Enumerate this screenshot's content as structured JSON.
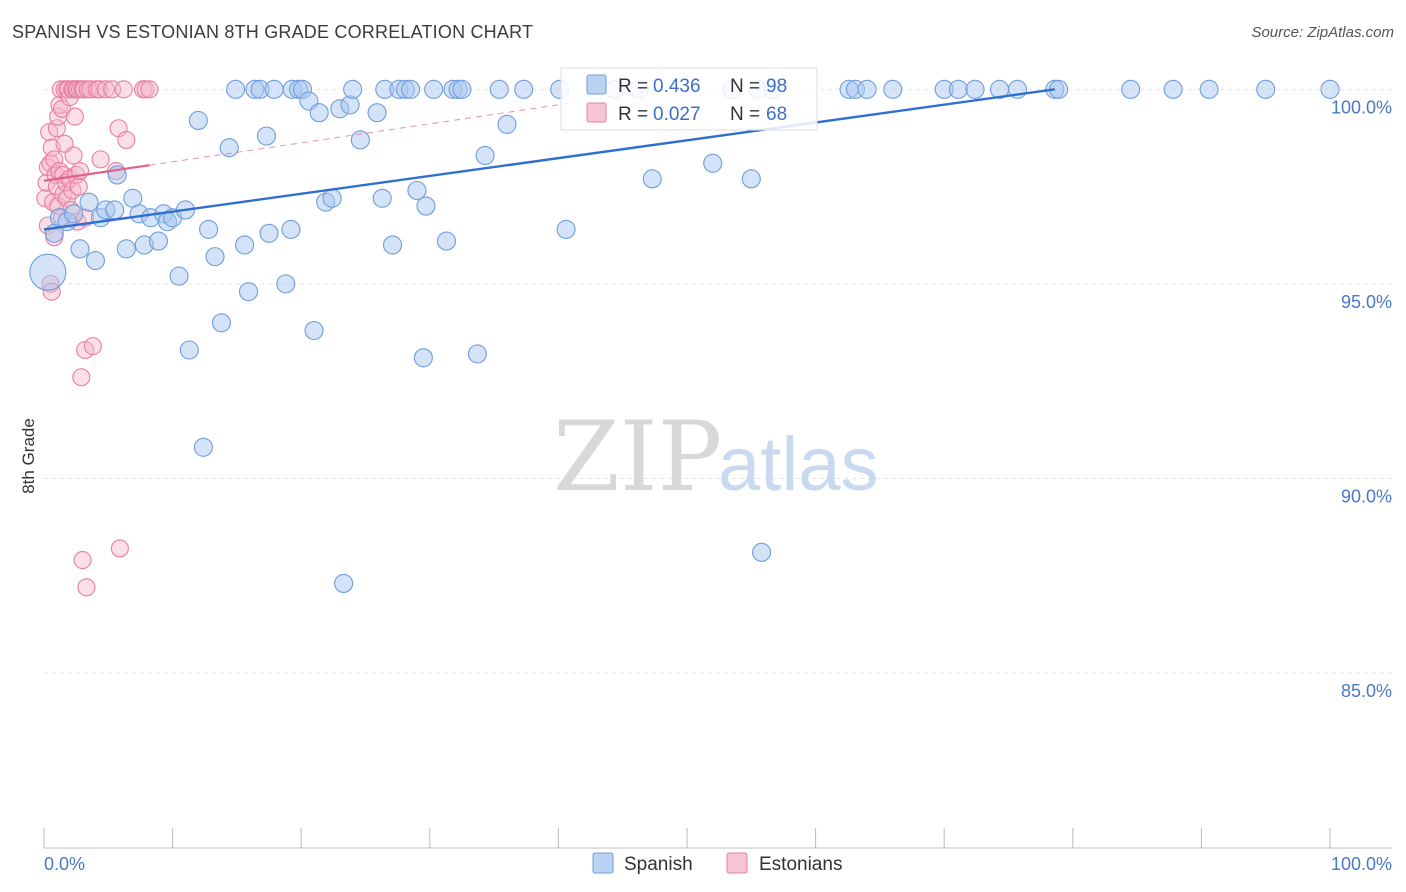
{
  "header": {
    "title": "SPANISH VS ESTONIAN 8TH GRADE CORRELATION CHART",
    "source": "Source: ZipAtlas.com"
  },
  "watermark": {
    "zip": "ZIP",
    "atlas": "atlas"
  },
  "legend": {
    "spanish": {
      "r_label": "R =",
      "r_value": "0.436",
      "n_label": "N =",
      "n_value": "98"
    },
    "estonians": {
      "r_label": "R =",
      "r_value": "0.027",
      "n_label": "N =",
      "n_value": "68"
    }
  },
  "colors": {
    "spanish_fill": "#aac8f0",
    "spanish_stroke": "#6f9ddb",
    "spanish_line": "#2f6fd0",
    "estonian_fill": "#f5b8ca",
    "estonian_stroke": "#e87fa0",
    "estonian_line": "#e0628c",
    "grid": "#e3e3e3",
    "tick_label": "#4a78c8"
  },
  "chart_data": {
    "type": "scatter",
    "title": "SPANISH VS ESTONIAN 8TH GRADE CORRELATION CHART",
    "xlabel": "",
    "ylabel": "8th Grade",
    "xlim": [
      0,
      100
    ],
    "ylim": [
      80.5,
      100.6
    ],
    "x_tick_labels": [
      "0.0%",
      "100.0%"
    ],
    "y_ticks": [
      85,
      90,
      95,
      100
    ],
    "y_tick_labels": [
      "85.0%",
      "90.0%",
      "95.0%",
      "100.0%"
    ],
    "legend_position": "top-center",
    "series": [
      {
        "name": "Spanish",
        "R": 0.436,
        "N": 98,
        "trend": {
          "x": [
            0,
            78.6
          ],
          "y": [
            96.4,
            100.0
          ]
        },
        "points": [
          [
            0.3,
            95.3
          ],
          [
            0.8,
            96.3
          ],
          [
            1.2,
            96.7
          ],
          [
            1.8,
            96.6
          ],
          [
            2.3,
            96.8
          ],
          [
            2.8,
            95.9
          ],
          [
            3.5,
            97.1
          ],
          [
            4.0,
            95.6
          ],
          [
            4.4,
            96.7
          ],
          [
            4.8,
            96.9
          ],
          [
            5.5,
            96.9
          ],
          [
            5.7,
            97.8
          ],
          [
            6.4,
            95.9
          ],
          [
            6.9,
            97.2
          ],
          [
            7.4,
            96.8
          ],
          [
            7.8,
            96.0
          ],
          [
            8.3,
            96.7
          ],
          [
            8.9,
            96.1
          ],
          [
            9.3,
            96.8
          ],
          [
            9.6,
            96.6
          ],
          [
            10.0,
            96.7
          ],
          [
            10.5,
            95.2
          ],
          [
            11.0,
            96.9
          ],
          [
            11.3,
            93.3
          ],
          [
            12.0,
            99.2
          ],
          [
            12.4,
            90.8
          ],
          [
            12.8,
            96.4
          ],
          [
            13.3,
            95.7
          ],
          [
            13.8,
            94.0
          ],
          [
            14.4,
            98.5
          ],
          [
            14.9,
            100.0
          ],
          [
            15.6,
            96.0
          ],
          [
            15.9,
            94.8
          ],
          [
            16.4,
            100.0
          ],
          [
            16.8,
            100.0
          ],
          [
            17.3,
            98.8
          ],
          [
            17.5,
            96.3
          ],
          [
            17.9,
            100.0
          ],
          [
            18.8,
            95.0
          ],
          [
            19.2,
            96.4
          ],
          [
            19.3,
            100.0
          ],
          [
            19.8,
            100.0
          ],
          [
            20.1,
            100.0
          ],
          [
            20.6,
            99.7
          ],
          [
            21.0,
            93.8
          ],
          [
            21.4,
            99.4
          ],
          [
            21.9,
            97.1
          ],
          [
            22.4,
            97.2
          ],
          [
            23.0,
            99.5
          ],
          [
            23.3,
            87.3
          ],
          [
            23.8,
            99.6
          ],
          [
            24.0,
            100.0
          ],
          [
            24.6,
            98.7
          ],
          [
            25.9,
            99.4
          ],
          [
            26.3,
            97.2
          ],
          [
            26.5,
            100.0
          ],
          [
            27.1,
            96.0
          ],
          [
            27.6,
            100.0
          ],
          [
            28.1,
            100.0
          ],
          [
            28.5,
            100.0
          ],
          [
            29.0,
            97.4
          ],
          [
            29.5,
            93.1
          ],
          [
            29.7,
            97.0
          ],
          [
            30.3,
            100.0
          ],
          [
            31.3,
            96.1
          ],
          [
            31.8,
            100.0
          ],
          [
            32.2,
            100.0
          ],
          [
            32.5,
            100.0
          ],
          [
            33.7,
            93.2
          ],
          [
            34.3,
            98.3
          ],
          [
            35.4,
            100.0
          ],
          [
            36.0,
            99.1
          ],
          [
            37.3,
            100.0
          ],
          [
            40.1,
            100.0
          ],
          [
            40.6,
            96.4
          ],
          [
            44.4,
            100.0
          ],
          [
            46.3,
            100.0
          ],
          [
            47.3,
            97.7
          ],
          [
            52.0,
            98.1
          ],
          [
            53.5,
            100.0
          ],
          [
            55.0,
            97.7
          ],
          [
            55.5,
            100.0
          ],
          [
            55.8,
            88.1
          ],
          [
            56.7,
            100.0
          ],
          [
            62.6,
            100.0
          ],
          [
            63.1,
            100.0
          ],
          [
            64.0,
            100.0
          ],
          [
            66.0,
            100.0
          ],
          [
            70.0,
            100.0
          ],
          [
            71.1,
            100.0
          ],
          [
            72.4,
            100.0
          ],
          [
            74.3,
            100.0
          ],
          [
            75.7,
            100.0
          ],
          [
            78.6,
            100.0
          ],
          [
            78.9,
            100.0
          ],
          [
            84.5,
            100.0
          ],
          [
            87.8,
            100.0
          ],
          [
            90.6,
            100.0
          ],
          [
            95.0,
            100.0
          ],
          [
            100.0,
            100.0
          ]
        ]
      },
      {
        "name": "Estonians",
        "R": 0.027,
        "N": 68,
        "trend": {
          "x": [
            0,
            8.2
          ],
          "y": [
            97.65,
            98.05
          ]
        },
        "points": [
          [
            0.1,
            97.2
          ],
          [
            0.2,
            97.6
          ],
          [
            0.3,
            98.0
          ],
          [
            0.3,
            96.5
          ],
          [
            0.4,
            98.9
          ],
          [
            0.5,
            95.0
          ],
          [
            0.5,
            98.1
          ],
          [
            0.6,
            94.8
          ],
          [
            0.6,
            98.5
          ],
          [
            0.7,
            97.1
          ],
          [
            0.8,
            96.2
          ],
          [
            0.8,
            98.2
          ],
          [
            0.9,
            97.8
          ],
          [
            1.0,
            97.5
          ],
          [
            1.0,
            99.0
          ],
          [
            1.1,
            97.0
          ],
          [
            1.1,
            99.3
          ],
          [
            1.2,
            97.9
          ],
          [
            1.2,
            99.6
          ],
          [
            1.3,
            100.0
          ],
          [
            1.4,
            96.7
          ],
          [
            1.4,
            99.5
          ],
          [
            1.5,
            97.3
          ],
          [
            1.5,
            97.8
          ],
          [
            1.6,
            100.0
          ],
          [
            1.6,
            98.6
          ],
          [
            1.7,
            97.6
          ],
          [
            1.8,
            100.0
          ],
          [
            1.8,
            97.2
          ],
          [
            1.9,
            100.0
          ],
          [
            2.0,
            97.7
          ],
          [
            2.0,
            99.8
          ],
          [
            2.1,
            96.9
          ],
          [
            2.2,
            97.4
          ],
          [
            2.2,
            100.0
          ],
          [
            2.3,
            98.3
          ],
          [
            2.3,
            100.0
          ],
          [
            2.4,
            99.3
          ],
          [
            2.5,
            100.0
          ],
          [
            2.5,
            97.8
          ],
          [
            2.6,
            100.0
          ],
          [
            2.6,
            96.6
          ],
          [
            2.7,
            97.5
          ],
          [
            2.8,
            100.0
          ],
          [
            2.8,
            97.9
          ],
          [
            2.9,
            92.6
          ],
          [
            3.0,
            100.0
          ],
          [
            3.0,
            87.9
          ],
          [
            3.1,
            100.0
          ],
          [
            3.2,
            96.7
          ],
          [
            3.2,
            93.3
          ],
          [
            3.3,
            87.2
          ],
          [
            3.4,
            100.0
          ],
          [
            3.6,
            100.0
          ],
          [
            3.8,
            93.4
          ],
          [
            4.1,
            100.0
          ],
          [
            4.3,
            100.0
          ],
          [
            4.4,
            98.2
          ],
          [
            4.8,
            100.0
          ],
          [
            5.3,
            100.0
          ],
          [
            5.6,
            97.9
          ],
          [
            5.8,
            99.0
          ],
          [
            5.9,
            88.2
          ],
          [
            6.2,
            100.0
          ],
          [
            6.4,
            98.7
          ],
          [
            7.7,
            100.0
          ],
          [
            7.9,
            100.0
          ],
          [
            8.2,
            100.0
          ]
        ]
      }
    ]
  },
  "bottom_legend": {
    "spanish": "Spanish",
    "estonians": "Estonians"
  }
}
